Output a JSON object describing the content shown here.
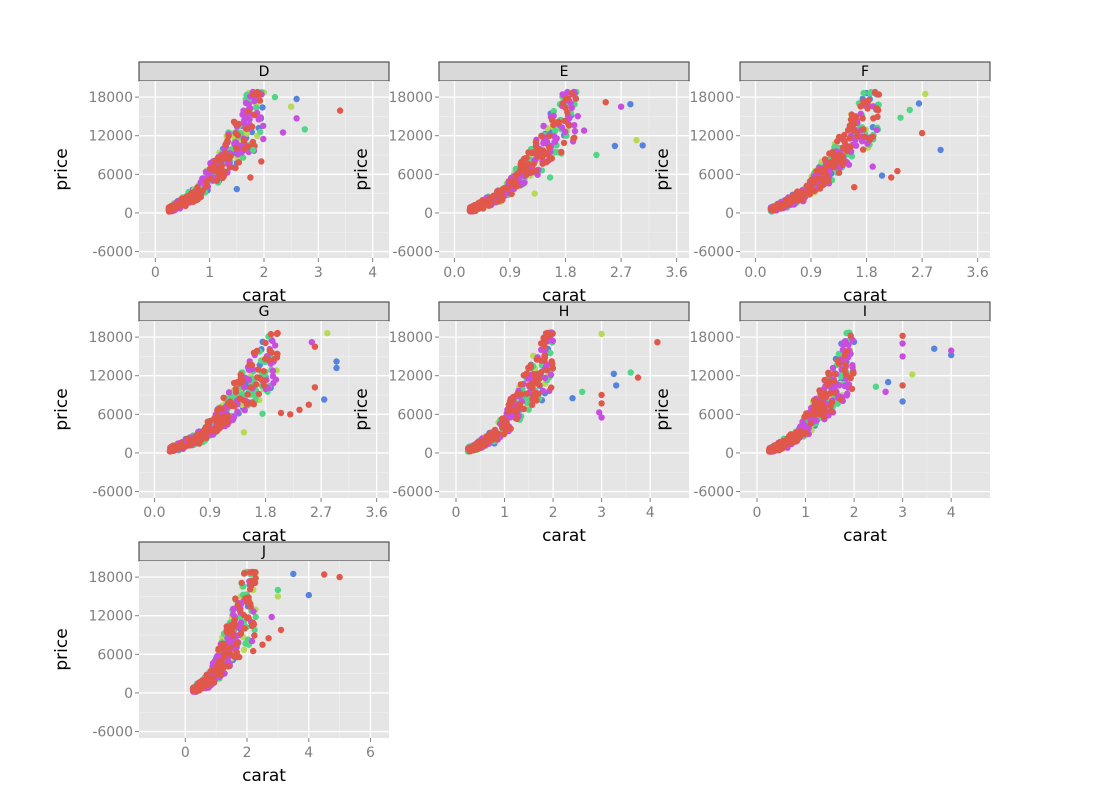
{
  "chart_data": {
    "type": "scatter",
    "facet_by": "color",
    "color_by": "clarity",
    "xlabel": "carat",
    "ylabel": "price",
    "ylim": [
      -7000,
      20500
    ],
    "yticks": [
      -6000,
      0,
      6000,
      12000,
      18000
    ],
    "y_tick_labels": [
      "-6000",
      "0",
      "6000",
      "12000",
      "18000"
    ],
    "grid": true,
    "background": "#e5e5e5",
    "strip_fill": "#d9d9d9",
    "series_colors": [
      "#e0584a",
      "#c84ee0",
      "#50d685",
      "#b7d955",
      "#5484dd"
    ],
    "panels": [
      {
        "strip_label": "D",
        "xlim": [
          -0.3,
          4.3
        ],
        "xticks": [
          0,
          1,
          2,
          3,
          4
        ],
        "x_tick_labels": [
          "0",
          "1",
          "2",
          "3",
          "4"
        ],
        "trend": {
          "x": [
            0.25,
            0.5,
            0.8,
            1.0,
            1.2,
            1.5,
            1.8,
            2.0
          ],
          "y": [
            500,
            1600,
            3200,
            5500,
            7500,
            11000,
            15000,
            17500
          ],
          "rmax": 0.7,
          "ymax": 18800
        },
        "extra_points": [
          {
            "x": 3.4,
            "y": 15900,
            "c": 0
          },
          {
            "x": 2.6,
            "y": 17700,
            "c": 4
          },
          {
            "x": 2.75,
            "y": 13000,
            "c": 2
          },
          {
            "x": 2.6,
            "y": 14700,
            "c": 1
          },
          {
            "x": 2.5,
            "y": 16500,
            "c": 3
          },
          {
            "x": 1.5,
            "y": 3700,
            "c": 4
          },
          {
            "x": 1.75,
            "y": 5500,
            "c": 0
          },
          {
            "x": 1.8,
            "y": 9800,
            "c": 2
          },
          {
            "x": 2.35,
            "y": 12500,
            "c": 1
          },
          {
            "x": 2.2,
            "y": 18000,
            "c": 2
          },
          {
            "x": 1.95,
            "y": 8000,
            "c": 0
          }
        ]
      },
      {
        "strip_label": "E",
        "xlim": [
          -0.25,
          3.8
        ],
        "xticks": [
          0,
          0.9,
          1.8,
          2.7,
          3.6
        ],
        "x_tick_labels": [
          "0.0",
          "0.9",
          "1.8",
          "2.7",
          "3.6"
        ],
        "trend": {
          "x": [
            0.25,
            0.5,
            0.8,
            1.0,
            1.2,
            1.5,
            1.8,
            2.0
          ],
          "y": [
            500,
            1500,
            3000,
            5200,
            7300,
            10800,
            14800,
            17200
          ],
          "rmax": 0.65,
          "ymax": 18800
        },
        "extra_points": [
          {
            "x": 2.85,
            "y": 16900,
            "c": 4
          },
          {
            "x": 2.7,
            "y": 16500,
            "c": 1
          },
          {
            "x": 3.05,
            "y": 10500,
            "c": 4
          },
          {
            "x": 2.95,
            "y": 11300,
            "c": 3
          },
          {
            "x": 2.6,
            "y": 10400,
            "c": 4
          },
          {
            "x": 2.3,
            "y": 9000,
            "c": 2
          },
          {
            "x": 1.3,
            "y": 3000,
            "c": 3
          },
          {
            "x": 1.55,
            "y": 5500,
            "c": 2
          },
          {
            "x": 2.1,
            "y": 12800,
            "c": 1
          },
          {
            "x": 2.45,
            "y": 17200,
            "c": 0
          }
        ]
      },
      {
        "strip_label": "F",
        "xlim": [
          -0.25,
          3.8
        ],
        "xticks": [
          0,
          0.9,
          1.8,
          2.7,
          3.6
        ],
        "x_tick_labels": [
          "0.0",
          "0.9",
          "1.8",
          "2.7",
          "3.6"
        ],
        "trend": {
          "x": [
            0.25,
            0.5,
            0.8,
            1.0,
            1.2,
            1.5,
            1.8,
            2.0
          ],
          "y": [
            500,
            1500,
            3000,
            5200,
            7300,
            10800,
            14800,
            17200
          ],
          "rmax": 0.65,
          "ymax": 18800
        },
        "extra_points": [
          {
            "x": 3.0,
            "y": 9800,
            "c": 4
          },
          {
            "x": 2.7,
            "y": 12400,
            "c": 0
          },
          {
            "x": 2.75,
            "y": 18500,
            "c": 3
          },
          {
            "x": 2.65,
            "y": 17000,
            "c": 4
          },
          {
            "x": 2.5,
            "y": 16000,
            "c": 2
          },
          {
            "x": 2.2,
            "y": 5500,
            "c": 0
          },
          {
            "x": 2.3,
            "y": 6500,
            "c": 0
          },
          {
            "x": 2.05,
            "y": 5800,
            "c": 4
          },
          {
            "x": 1.9,
            "y": 7200,
            "c": 1
          },
          {
            "x": 2.35,
            "y": 14800,
            "c": 2
          },
          {
            "x": 1.6,
            "y": 4000,
            "c": 0
          }
        ]
      },
      {
        "strip_label": "G",
        "xlim": [
          -0.25,
          3.8
        ],
        "xticks": [
          0,
          0.9,
          1.8,
          2.7,
          3.6
        ],
        "x_tick_labels": [
          "0.0",
          "0.9",
          "1.8",
          "2.7",
          "3.6"
        ],
        "trend": {
          "x": [
            0.25,
            0.5,
            0.8,
            1.0,
            1.2,
            1.5,
            1.8,
            2.0
          ],
          "y": [
            500,
            1400,
            2800,
            4900,
            7000,
            10300,
            14000,
            16800
          ],
          "rmax": 0.7,
          "ymax": 18800
        },
        "extra_points": [
          {
            "x": 2.95,
            "y": 14200,
            "c": 4
          },
          {
            "x": 2.95,
            "y": 13200,
            "c": 4
          },
          {
            "x": 2.8,
            "y": 18600,
            "c": 3
          },
          {
            "x": 2.6,
            "y": 10200,
            "c": 0
          },
          {
            "x": 2.75,
            "y": 8300,
            "c": 4
          },
          {
            "x": 2.2,
            "y": 6000,
            "c": 0
          },
          {
            "x": 2.5,
            "y": 7500,
            "c": 0
          },
          {
            "x": 2.35,
            "y": 6700,
            "c": 0
          },
          {
            "x": 2.05,
            "y": 6200,
            "c": 0
          },
          {
            "x": 1.75,
            "y": 6100,
            "c": 2
          },
          {
            "x": 1.45,
            "y": 3200,
            "c": 3
          },
          {
            "x": 2.55,
            "y": 17200,
            "c": 1
          },
          {
            "x": 2.6,
            "y": 16500,
            "c": 0
          }
        ]
      },
      {
        "strip_label": "H",
        "xlim": [
          -0.35,
          4.8
        ],
        "xticks": [
          0,
          1,
          2,
          3,
          4
        ],
        "x_tick_labels": [
          "0",
          "1",
          "2",
          "3",
          "4"
        ],
        "trend": {
          "x": [
            0.25,
            0.5,
            0.8,
            1.0,
            1.2,
            1.5,
            1.8,
            2.0
          ],
          "y": [
            450,
            1300,
            2600,
            4600,
            6700,
            10000,
            13800,
            16500
          ],
          "rmax": 0.75,
          "ymax": 18800
        },
        "extra_points": [
          {
            "x": 4.15,
            "y": 17200,
            "c": 0
          },
          {
            "x": 3.6,
            "y": 12500,
            "c": 2
          },
          {
            "x": 3.75,
            "y": 11700,
            "c": 0
          },
          {
            "x": 3.25,
            "y": 12300,
            "c": 4
          },
          {
            "x": 3.0,
            "y": 18500,
            "c": 3
          },
          {
            "x": 3.0,
            "y": 7700,
            "c": 0
          },
          {
            "x": 3.0,
            "y": 9000,
            "c": 0
          },
          {
            "x": 2.95,
            "y": 6300,
            "c": 1
          },
          {
            "x": 3.0,
            "y": 5500,
            "c": 1
          },
          {
            "x": 3.3,
            "y": 10500,
            "c": 4
          },
          {
            "x": 2.6,
            "y": 9500,
            "c": 2
          },
          {
            "x": 2.4,
            "y": 8500,
            "c": 4
          }
        ]
      },
      {
        "strip_label": "I",
        "xlim": [
          -0.35,
          4.8
        ],
        "xticks": [
          0,
          1,
          2,
          3,
          4
        ],
        "x_tick_labels": [
          "0",
          "1",
          "2",
          "3",
          "4"
        ],
        "trend": {
          "x": [
            0.25,
            0.5,
            0.8,
            1.0,
            1.2,
            1.5,
            1.8,
            2.0
          ],
          "y": [
            400,
            1200,
            2400,
            4200,
            6200,
            9500,
            13000,
            15800
          ],
          "rmax": 0.75,
          "ymax": 18800
        },
        "extra_points": [
          {
            "x": 3.65,
            "y": 16200,
            "c": 4
          },
          {
            "x": 4.0,
            "y": 15200,
            "c": 4
          },
          {
            "x": 4.0,
            "y": 15900,
            "c": 1
          },
          {
            "x": 3.0,
            "y": 18200,
            "c": 0
          },
          {
            "x": 3.0,
            "y": 17000,
            "c": 1
          },
          {
            "x": 3.0,
            "y": 15000,
            "c": 1
          },
          {
            "x": 3.2,
            "y": 12200,
            "c": 3
          },
          {
            "x": 3.0,
            "y": 10500,
            "c": 0
          },
          {
            "x": 3.0,
            "y": 8000,
            "c": 4
          },
          {
            "x": 2.7,
            "y": 11000,
            "c": 4
          },
          {
            "x": 2.65,
            "y": 9500,
            "c": 1
          },
          {
            "x": 2.45,
            "y": 10300,
            "c": 2
          }
        ]
      },
      {
        "strip_label": "J",
        "xlim": [
          -1.5,
          6.6
        ],
        "xticks": [
          0,
          2,
          4,
          6
        ],
        "x_tick_labels": [
          "0",
          "2",
          "4",
          "6"
        ],
        "trend": {
          "x": [
            0.25,
            0.5,
            0.8,
            1.0,
            1.2,
            1.5,
            1.8,
            2.0,
            2.3
          ],
          "y": [
            400,
            1100,
            2200,
            3800,
            5600,
            8500,
            11800,
            14500,
            17500
          ],
          "rmax": 1.0,
          "ymax": 18800
        },
        "extra_points": [
          {
            "x": 5.0,
            "y": 18000,
            "c": 0
          },
          {
            "x": 4.5,
            "y": 18400,
            "c": 0
          },
          {
            "x": 3.5,
            "y": 18500,
            "c": 4
          },
          {
            "x": 4.0,
            "y": 15200,
            "c": 4
          },
          {
            "x": 3.0,
            "y": 16000,
            "c": 2
          },
          {
            "x": 3.0,
            "y": 15000,
            "c": 3
          },
          {
            "x": 3.1,
            "y": 9800,
            "c": 0
          },
          {
            "x": 2.7,
            "y": 8500,
            "c": 0
          },
          {
            "x": 2.5,
            "y": 7500,
            "c": 0
          },
          {
            "x": 2.8,
            "y": 11800,
            "c": 1
          },
          {
            "x": 2.2,
            "y": 6500,
            "c": 0
          }
        ]
      }
    ]
  }
}
